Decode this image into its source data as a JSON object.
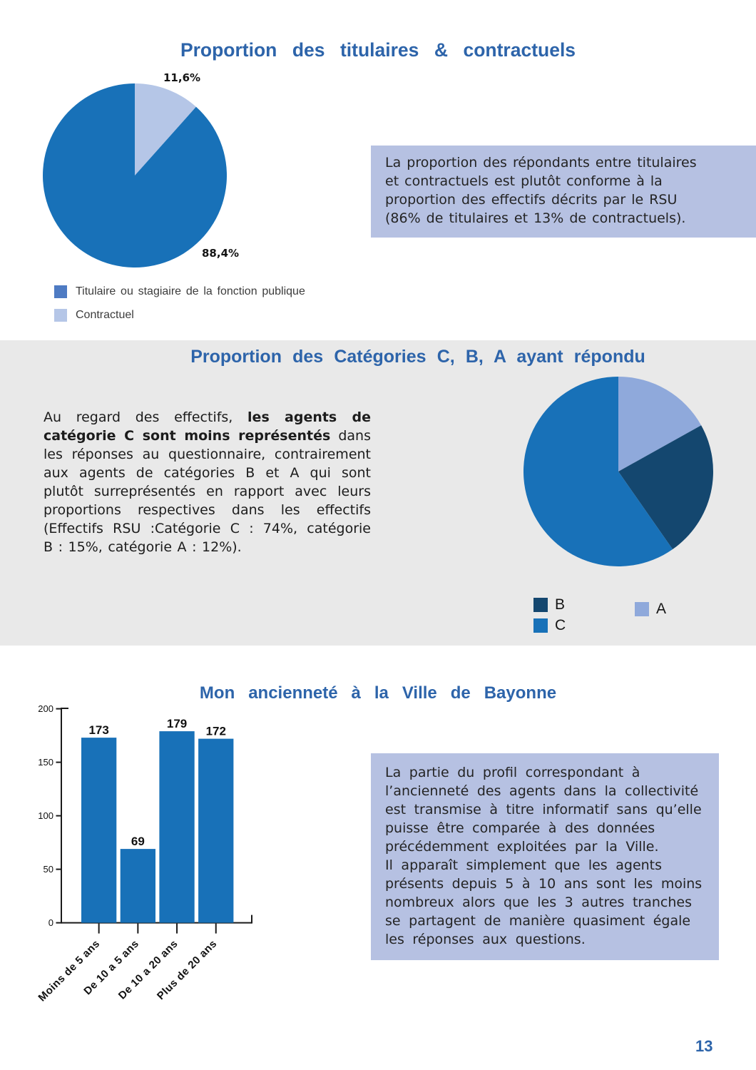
{
  "page": {
    "number": "13"
  },
  "colors": {
    "title_blue": "#2d64aa",
    "chart_blue": "#1871b8",
    "dark_navy": "#14476f",
    "periwinkle": "#8fa9db",
    "light_periwinkle": "#b5c6e7",
    "legend_titulaire_blue": "#4e7bc3",
    "note_box_bg": "#b6c1e2",
    "gray_band_bg": "#e9e9e9"
  },
  "sections": {
    "titulaires": {
      "title": "Proportion des titulaires & contractuels",
      "note": "La proportion des répondants entre titulaires\net contractuels est plutôt conforme à la\nproportion des effectifs décrits par le RSU\n(86% de titulaires et 13% de contractuels).",
      "legend": [
        {
          "label": "Titulaire ou stagiaire de la fonction publique",
          "color": "#4e7bc3"
        },
        {
          "label": "Contractuel",
          "color": "#b5c6e7"
        }
      ]
    },
    "categories": {
      "title": "Proportion des Catégories C, B, A ayant répondu",
      "paragraph": {
        "l1_normal": "Au regard des effectifs, ",
        "l1_bold": "les agents de",
        "l2_bold": "catégorie C sont moins représentés",
        "l2_normal": " dans",
        "l3": "les réponses au questionnaire, contrairement",
        "l4": "aux agents de catégories B et A qui sont",
        "l5": "plutôt surreprésentés en rapport avec leurs",
        "l6": "proportions respectives dans les effectifs",
        "l7": "(Effectifs RSU :Catégorie C : 74%, catégorie",
        "l8": "B : 15%, catégorie A : 12%)."
      },
      "legend": [
        {
          "label": "B",
          "color": "#14476f"
        },
        {
          "label": "C",
          "color": "#1871b8"
        },
        {
          "label": "A",
          "color": "#8fa9db"
        }
      ]
    },
    "anciennete": {
      "title": "Mon ancienneté à la Ville de Bayonne",
      "note": "La partie du profil correspondant à\nl’ancienneté des agents dans la collectivité\nest transmise à titre informatif sans qu’elle\npuisse être comparée à des données\nprécédemment exploitées par la Ville.\nIl apparaît simplement que les agents\nprésents depuis 5 à 10 ans sont les moins\nnombreux alors que les 3 autres tranches\nse partagent de manière quasiment égale\nles réponses aux questions."
    }
  },
  "chart_data": [
    {
      "type": "pie",
      "title": "Proportion des titulaires & contractuels",
      "start_angle_deg": 0,
      "direction": "clockwise",
      "slices": [
        {
          "label": "Contractuel",
          "value": 11.6,
          "display": "11,6%",
          "color": "#b5c6e7"
        },
        {
          "label": "Titulaire ou stagiaire de la fonction publique",
          "value": 88.4,
          "display": "88,4%",
          "color": "#1871b8"
        }
      ]
    },
    {
      "type": "pie",
      "title": "Proportion des Catégories C, B, A ayant répondu",
      "start_angle_deg": 0,
      "direction": "clockwise",
      "slices": [
        {
          "label": "A",
          "value": 16.9,
          "color": "#8fa9db"
        },
        {
          "label": "B",
          "value": 23.4,
          "color": "#14476f"
        },
        {
          "label": "C",
          "value": 59.7,
          "color": "#1871b8"
        }
      ]
    },
    {
      "type": "bar",
      "title": "Mon ancienneté à la Ville de Bayonne",
      "categories": [
        "Moins de 5 ans",
        "De 10 a 5 ans",
        "De 10 a 20 ans",
        "Plus de 20 ans"
      ],
      "values": [
        173,
        69,
        179,
        172
      ],
      "bar_color": "#1871b8",
      "axis_color": "#1a1a1a",
      "ylim": [
        0,
        200
      ],
      "yticks": [
        0,
        50,
        100,
        150,
        200
      ]
    }
  ]
}
